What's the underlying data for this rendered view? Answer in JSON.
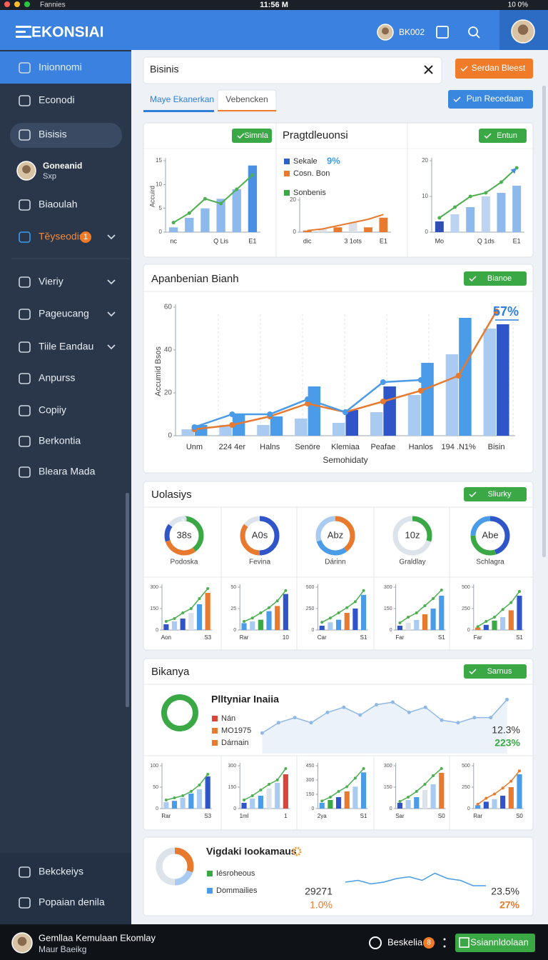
{
  "status": {
    "carrier": "Fannies",
    "time": "11:56 M",
    "battery": "10 0%"
  },
  "header": {
    "logo": "EKONSIAI",
    "user": "BK002"
  },
  "sidebar": {
    "items": [
      "Inionnomi",
      "Econodi",
      "Bisisis",
      "Biaoulah",
      "Tĕyseodis",
      "Vieriy",
      "Pageucang",
      "Tiile Eandau",
      "Anpurss",
      "Copiiy",
      "Berkontia",
      "Bleara Mada"
    ],
    "badge": "1",
    "profile": {
      "name": "Goneanid",
      "role": "Sxp"
    },
    "bottom": [
      "Bekckeiys",
      "Popaian denila"
    ]
  },
  "search": {
    "value": "Bisinis"
  },
  "actions": {
    "primary": "Serdan Bleest",
    "secondary": "Pun Recedaan"
  },
  "tabs": [
    "Maye Ekanerkan",
    "Vebencken"
  ],
  "overview": {
    "button1": "Simnla",
    "button2": "Entun"
  },
  "trend": {
    "title": "Apanbenian Bianh",
    "button": "Bianoe"
  },
  "summary": {
    "title": "Uolasiys",
    "button": "Sliurky"
  },
  "segment": {
    "title": "Bikanya",
    "button": "Sarnus"
  },
  "footer": {
    "title": "Gemllaa Kemulaan Ekomlay",
    "sub": "Maur Baeikg",
    "link": "Beskelia",
    "badge": "8",
    "button": "Ssiannldolaan"
  },
  "chart_data": [
    {
      "type": "combo",
      "ylabel": "Accuird",
      "categories": [
        "nc",
        null,
        null,
        "Q Lis",
        null,
        "E1"
      ],
      "ylim": [
        0,
        15
      ],
      "yticks": [
        0,
        5,
        10,
        15
      ],
      "series": [
        {
          "type": "bar",
          "colors": [
            "#8db9ec",
            "#8db9ec",
            "#8db9ec",
            "#8db9ec",
            "#8db9ec",
            "#4a90e2"
          ],
          "values": [
            1,
            3,
            5,
            7,
            9,
            14
          ]
        },
        {
          "type": "line",
          "color": "#4caf50",
          "markers": true,
          "values": [
            2,
            4,
            7,
            6,
            9,
            12
          ]
        }
      ]
    },
    {
      "type": "combo",
      "title": "Pragtdleuonsi",
      "categories": [
        "dic",
        null,
        null,
        "3 1ots",
        null,
        "E1"
      ],
      "ylim": [
        0,
        20
      ],
      "yticks": [
        0,
        20
      ],
      "legend": [
        {
          "name": "Sekale",
          "color": "#2a62c9"
        },
        {
          "name": "Cosn. Bon",
          "color": "#e87a2f"
        },
        {
          "name": "Sonbenis",
          "color": "#3aa845"
        }
      ],
      "annotations": [
        "9%"
      ],
      "series": [
        {
          "type": "bar",
          "colors": [
            "#e87a2f",
            "#dcdfe6",
            "#e87a2f",
            "#dcdfe6",
            "#e87a2f",
            "#e87a2f"
          ],
          "values": [
            1,
            2,
            3,
            6,
            3,
            9
          ]
        },
        {
          "type": "line",
          "color": "#e87a2f",
          "values": [
            1,
            2,
            4,
            6,
            8,
            11
          ]
        }
      ]
    },
    {
      "type": "combo",
      "categories": [
        "Mo",
        null,
        null,
        "Q 1ds",
        null,
        "E1"
      ],
      "ylim": [
        0,
        20
      ],
      "yticks": [
        0,
        10,
        20
      ],
      "series": [
        {
          "type": "bar",
          "colors": [
            "#2f4fb5",
            "#bcd3f1",
            "#8db9ec",
            "#bcd3f1",
            "#8db9ec",
            "#8db9ec"
          ],
          "values": [
            3,
            5,
            7,
            10,
            11,
            13
          ]
        },
        {
          "type": "line",
          "color": "#4caf50",
          "markers": true,
          "arrow": true,
          "values": [
            4,
            7,
            10,
            11,
            14,
            18
          ]
        }
      ]
    },
    {
      "type": "combo",
      "ylabel": "Accumid Bsos",
      "xlabel": "Semohidaty",
      "grid": false,
      "annotations": [
        "57%"
      ],
      "categories": [
        "Unm",
        "224 4er",
        "Halns",
        "Senöre",
        "Klemiaa",
        "Peafae",
        "Hanlos",
        "194 .N1%",
        "Bisin"
      ],
      "ylim": [
        0,
        60
      ],
      "yticks": [
        0,
        20,
        40,
        60
      ],
      "series": [
        {
          "type": "bar",
          "color": "#a9cbf2",
          "values": [
            3,
            5,
            5,
            8,
            6,
            11,
            19,
            38,
            50
          ]
        },
        {
          "type": "bar",
          "colors": [
            "#4a9be8",
            "#4a9be8",
            "#4a9be8",
            "#4a9be8",
            "#2f55c9",
            "#2f55c9",
            "#4a9be8",
            "#4a9be8",
            "#2f55c9"
          ],
          "values": [
            5,
            10,
            9,
            23,
            12,
            23,
            34,
            55,
            52
          ]
        },
        {
          "type": "line",
          "color": "#e87a2f",
          "markers": true,
          "values": [
            3,
            5,
            9,
            15,
            11,
            16,
            21,
            28,
            58
          ]
        },
        {
          "type": "line",
          "color": "#4a9be8",
          "markers": true,
          "values": [
            4,
            10,
            10,
            17,
            11,
            25,
            26,
            null,
            null
          ]
        }
      ]
    },
    {
      "type": "donut",
      "center": "38s",
      "label": "Podoska",
      "values": [
        40,
        30,
        15,
        15
      ],
      "colors": [
        "#3aa845",
        "#e87a2f",
        "#2f55c9",
        "#dde3ea"
      ]
    },
    {
      "type": "donut",
      "center": "A0s",
      "label": "Fevina",
      "values": [
        50,
        35,
        15
      ],
      "colors": [
        "#2f55c9",
        "#e87a2f",
        "#dde3ea"
      ]
    },
    {
      "type": "donut",
      "center": "Abz",
      "label": "Dárinn",
      "values": [
        40,
        30,
        30
      ],
      "colors": [
        "#e87a2f",
        "#4a9be8",
        "#a9cbf2"
      ]
    },
    {
      "type": "donut",
      "center": "10z",
      "label": "Graldlay",
      "values": [
        30,
        70
      ],
      "colors": [
        "#3aa845",
        "#dde3ea"
      ]
    },
    {
      "type": "donut",
      "center": "Abe",
      "label": "Schlagra",
      "values": [
        45,
        30,
        25
      ],
      "colors": [
        "#2f55c9",
        "#3aa845",
        "#4a9be8"
      ]
    },
    {
      "type": "combo",
      "categories": [
        "Aon",
        null,
        null,
        null,
        null,
        "S3"
      ],
      "ylim": [
        0,
        300
      ],
      "yticks": [
        0,
        150,
        300
      ],
      "series": [
        {
          "type": "bar",
          "colors": [
            "#2f55c9",
            "#a9cbf2",
            "#2f55c9",
            "#dde3ea",
            "#4a9be8",
            "#e87a2f"
          ],
          "values": [
            40,
            60,
            80,
            120,
            180,
            260
          ]
        },
        {
          "type": "line",
          "color": "#4caf50",
          "markers": true,
          "values": [
            60,
            80,
            120,
            150,
            220,
            290
          ]
        }
      ]
    },
    {
      "type": "combo",
      "categories": [
        "Rar",
        null,
        null,
        null,
        null,
        "10"
      ],
      "ylim": [
        0,
        50
      ],
      "yticks": [
        0,
        25,
        50
      ],
      "series": [
        {
          "type": "bar",
          "colors": [
            "#4a9be8",
            "#a9cbf2",
            "#3aa845",
            "#4a9be8",
            "#e87a2f",
            "#2f55c9"
          ],
          "values": [
            8,
            10,
            12,
            22,
            28,
            42
          ]
        },
        {
          "type": "line",
          "color": "#4caf50",
          "markers": true,
          "values": [
            10,
            14,
            20,
            26,
            34,
            46
          ]
        }
      ]
    },
    {
      "type": "combo",
      "categories": [
        "Car",
        null,
        null,
        null,
        null,
        "S1"
      ],
      "ylim": [
        0,
        500
      ],
      "yticks": [
        0,
        250,
        500
      ],
      "series": [
        {
          "type": "bar",
          "colors": [
            "#2f55c9",
            "#a9cbf2",
            "#4a9be8",
            "#e87a2f",
            "#2f55c9",
            "#4a9be8"
          ],
          "values": [
            50,
            90,
            120,
            200,
            250,
            410
          ]
        },
        {
          "type": "line",
          "color": "#4caf50",
          "markers": true,
          "values": [
            90,
            140,
            200,
            260,
            330,
            460
          ]
        }
      ]
    },
    {
      "type": "combo",
      "categories": [
        "Far",
        null,
        null,
        null,
        null,
        "S1"
      ],
      "ylim": [
        0,
        300
      ],
      "yticks": [
        0,
        150,
        300
      ],
      "series": [
        {
          "type": "bar",
          "colors": [
            "#2f55c9",
            "#dde3ea",
            "#a9cbf2",
            "#e87a2f",
            "#4a9be8",
            "#4a9be8"
          ],
          "values": [
            30,
            50,
            70,
            110,
            150,
            240
          ]
        },
        {
          "type": "line",
          "color": "#4caf50",
          "markers": true,
          "values": [
            50,
            90,
            120,
            170,
            220,
            280
          ]
        }
      ]
    },
    {
      "type": "combo",
      "categories": [
        "Far",
        null,
        null,
        null,
        null,
        "S1"
      ],
      "ylim": [
        0,
        500
      ],
      "yticks": [
        0,
        250,
        500
      ],
      "series": [
        {
          "type": "bar",
          "colors": [
            "#e87a2f",
            "#2f55c9",
            "#3aa845",
            "#a9cbf2",
            "#e87a2f",
            "#2f55c9"
          ],
          "values": [
            30,
            60,
            110,
            150,
            230,
            400
          ]
        },
        {
          "type": "line",
          "color": "#4caf50",
          "markers": true,
          "values": [
            40,
            100,
            150,
            240,
            320,
            450
          ]
        }
      ]
    },
    {
      "type": "donut",
      "values": [
        100
      ],
      "colors": [
        "#3aa845"
      ]
    },
    {
      "type": "area",
      "title": "Plltyniar Inaiia",
      "color": "#8fb8e6",
      "markers": true,
      "ylim": [
        0,
        25
      ],
      "legend": [
        {
          "name": "Nán",
          "color": "#d9453a"
        },
        {
          "name": "MO1975",
          "color": "#e87a2f"
        },
        {
          "name": "Dárnain",
          "color": "#e87a2f"
        }
      ],
      "annotations": [
        "12.3%",
        "223%"
      ],
      "values": [
        8,
        12,
        14,
        12,
        16,
        18,
        15,
        19,
        20,
        16,
        18,
        13,
        12,
        14,
        14,
        21
      ]
    },
    {
      "type": "combo",
      "categories": [
        "Rar",
        null,
        null,
        null,
        null,
        "S3"
      ],
      "ylim": [
        0,
        100
      ],
      "yticks": [
        0,
        50,
        100
      ],
      "series": [
        {
          "type": "bar",
          "colors": [
            "#a9cbf2",
            "#4a9be8",
            "#a9cbf2",
            "#4a9be8",
            "#a9cbf2",
            "#2f55c9"
          ],
          "values": [
            15,
            18,
            25,
            35,
            45,
            75
          ]
        },
        {
          "type": "line",
          "color": "#4caf50",
          "markers": true,
          "values": [
            20,
            25,
            30,
            40,
            55,
            80
          ]
        }
      ]
    },
    {
      "type": "combo",
      "categories": [
        "1ml",
        null,
        null,
        null,
        null,
        "1"
      ],
      "ylim": [
        0,
        300
      ],
      "yticks": [
        0,
        150,
        300
      ],
      "series": [
        {
          "type": "bar",
          "colors": [
            "#2f55c9",
            "#a9cbf2",
            "#4a9be8",
            "#dde3ea",
            "#a9cbf2",
            "#d9453a"
          ],
          "values": [
            40,
            70,
            90,
            140,
            180,
            240
          ]
        },
        {
          "type": "line",
          "color": "#4caf50",
          "markers": true,
          "values": [
            60,
            90,
            130,
            170,
            200,
            280
          ]
        }
      ]
    },
    {
      "type": "combo",
      "categories": [
        "2ya",
        null,
        null,
        null,
        null,
        "S1"
      ],
      "ylim": [
        0,
        450
      ],
      "yticks": [
        0,
        150,
        300,
        450
      ],
      "series": [
        {
          "type": "bar",
          "colors": [
            "#4a9be8",
            "#3aa845",
            "#2f55c9",
            "#e87a2f",
            "#a9cbf2",
            "#4a9be8"
          ],
          "values": [
            60,
            90,
            120,
            180,
            230,
            380
          ]
        },
        {
          "type": "line",
          "color": "#4caf50",
          "markers": true,
          "values": [
            80,
            120,
            180,
            230,
            320,
            420
          ]
        }
      ]
    },
    {
      "type": "combo",
      "categories": [
        "Sar",
        null,
        null,
        null,
        null,
        "S0"
      ],
      "ylim": [
        0,
        300
      ],
      "yticks": [
        0,
        150,
        300
      ],
      "series": [
        {
          "type": "bar",
          "colors": [
            "#2f55c9",
            "#a9cbf2",
            "#4a9be8",
            "#dde3ea",
            "#a9cbf2",
            "#e87a2f"
          ],
          "values": [
            40,
            60,
            80,
            130,
            170,
            250
          ]
        },
        {
          "type": "line",
          "color": "#4caf50",
          "markers": true,
          "values": [
            50,
            80,
            120,
            170,
            230,
            280
          ]
        }
      ]
    },
    {
      "type": "combo",
      "categories": [
        "Rar",
        null,
        null,
        null,
        null,
        "S0"
      ],
      "ylim": [
        0,
        500
      ],
      "yticks": [
        0,
        250,
        500
      ],
      "series": [
        {
          "type": "bar",
          "colors": [
            "#4a9be8",
            "#2f55c9",
            "#a9cbf2",
            "#2f55c9",
            "#e87a2f",
            "#4a9be8"
          ],
          "values": [
            40,
            80,
            110,
            150,
            250,
            400
          ]
        },
        {
          "type": "line",
          "color": "#e87a2f",
          "markers": true,
          "values": [
            50,
            120,
            170,
            240,
            320,
            440
          ]
        }
      ]
    },
    {
      "type": "donut",
      "values": [
        30,
        20,
        50
      ],
      "colors": [
        "#e87a2f",
        "#a9cbf2",
        "#dde3ea"
      ]
    },
    {
      "type": "line",
      "title": "Vigdaki Iookamaus",
      "color": "#4a9be8",
      "ylim": [
        0,
        20
      ],
      "legend": [
        {
          "name": "Iésroheous",
          "color": "#3aa845"
        },
        {
          "name": "Dommailies",
          "color": "#4a9be8"
        }
      ],
      "annotations": [
        "29271",
        "1.0%",
        "23.5%",
        "27%"
      ],
      "values": [
        8,
        9,
        7,
        8,
        10,
        11,
        9,
        13,
        10,
        9,
        6,
        6
      ]
    }
  ]
}
